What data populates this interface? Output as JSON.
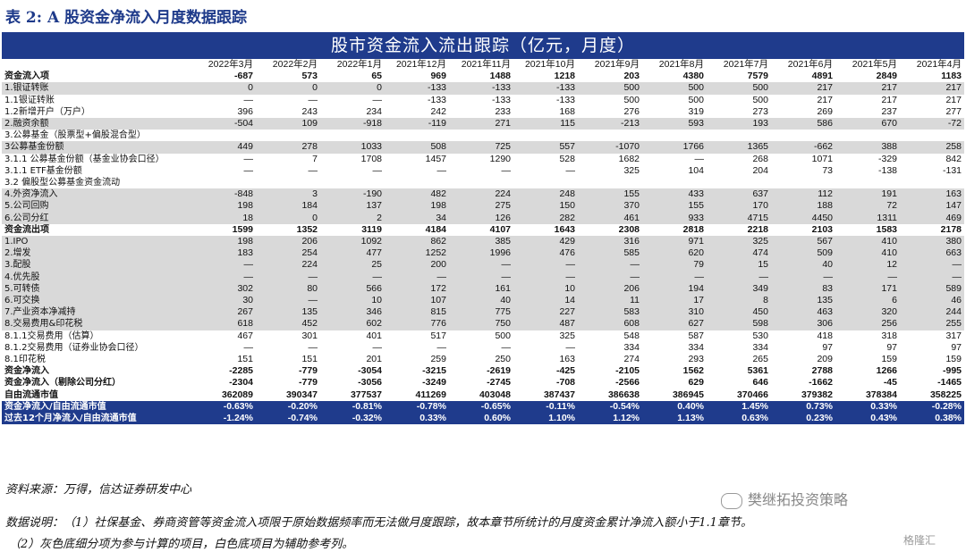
{
  "title": "表 2:  A 股资金净流入月度数据跟踪",
  "table_title": "股市资金流入流出跟踪（亿元，月度）",
  "columns": [
    "",
    "2022年3月",
    "2022年2月",
    "2022年1月",
    "2021年12月",
    "2021年11月",
    "2021年10月",
    "2021年9月",
    "2021年8月",
    "2021年7月",
    "2021年6月",
    "2021年5月",
    "2021年4月"
  ],
  "rows": [
    {
      "style": "b",
      "cells": [
        "资金流入项",
        "-687",
        "573",
        "65",
        "969",
        "1488",
        "1218",
        "203",
        "4380",
        "7579",
        "4891",
        "2849",
        "1183"
      ]
    },
    {
      "style": "g",
      "cells": [
        "1.银证转账",
        "0",
        "0",
        "0",
        "-133",
        "-133",
        "-133",
        "500",
        "500",
        "500",
        "217",
        "217",
        "217"
      ]
    },
    {
      "style": "w",
      "cells": [
        "1.1银证转账",
        "—",
        "—",
        "—",
        "-133",
        "-133",
        "-133",
        "500",
        "500",
        "500",
        "217",
        "217",
        "217"
      ]
    },
    {
      "style": "w",
      "cells": [
        "1.2新增开户（万户）",
        "396",
        "243",
        "234",
        "242",
        "233",
        "168",
        "276",
        "319",
        "273",
        "269",
        "237",
        "277"
      ]
    },
    {
      "style": "g",
      "cells": [
        "2.融资余额",
        "-504",
        "109",
        "-918",
        "-119",
        "271",
        "115",
        "-213",
        "593",
        "193",
        "586",
        "670",
        "-72"
      ]
    },
    {
      "style": "w",
      "cells": [
        "3.公募基金（股票型+偏股混合型）",
        "",
        "",
        "",
        "",
        "",
        "",
        "",
        "",
        "",
        "",
        "",
        ""
      ]
    },
    {
      "style": "g",
      "cells": [
        "3公募基金份额",
        "449",
        "278",
        "1033",
        "508",
        "725",
        "557",
        "-1070",
        "1766",
        "1365",
        "-662",
        "388",
        "258"
      ]
    },
    {
      "style": "w",
      "cells": [
        "3.1.1 公募基金份额（基金业协会口径）",
        "—",
        "7",
        "1708",
        "1457",
        "1290",
        "528",
        "1682",
        "—",
        "268",
        "1071",
        "-329",
        "842"
      ]
    },
    {
      "style": "w",
      "cells": [
        "3.1.1 ETF基金份额",
        "—",
        "—",
        "—",
        "—",
        "—",
        "—",
        "325",
        "104",
        "204",
        "73",
        "-138",
        "-131"
      ]
    },
    {
      "style": "w",
      "cells": [
        "3.2 偏股型公募基金资金流动",
        "",
        "",
        "",
        "",
        "",
        "",
        "",
        "",
        "",
        "",
        "",
        ""
      ]
    },
    {
      "style": "g",
      "cells": [
        "4.外资净流入",
        "-848",
        "3",
        "-190",
        "482",
        "224",
        "248",
        "155",
        "433",
        "637",
        "112",
        "191",
        "163"
      ]
    },
    {
      "style": "g",
      "cells": [
        "5.公司回购",
        "198",
        "184",
        "137",
        "198",
        "275",
        "150",
        "370",
        "155",
        "170",
        "188",
        "72",
        "147"
      ]
    },
    {
      "style": "g",
      "cells": [
        "6.公司分红",
        "18",
        "0",
        "2",
        "34",
        "126",
        "282",
        "461",
        "933",
        "4715",
        "4450",
        "1311",
        "469"
      ]
    },
    {
      "style": "b",
      "cells": [
        "资金流出项",
        "1599",
        "1352",
        "3119",
        "4184",
        "4107",
        "1643",
        "2308",
        "2818",
        "2218",
        "2103",
        "1583",
        "2178"
      ]
    },
    {
      "style": "g",
      "cells": [
        "1.IPO",
        "198",
        "206",
        "1092",
        "862",
        "385",
        "429",
        "316",
        "971",
        "325",
        "567",
        "410",
        "380"
      ]
    },
    {
      "style": "g",
      "cells": [
        "2.增发",
        "183",
        "254",
        "477",
        "1252",
        "1996",
        "476",
        "585",
        "620",
        "474",
        "509",
        "410",
        "663"
      ]
    },
    {
      "style": "g",
      "cells": [
        "3.配股",
        "—",
        "224",
        "25",
        "200",
        "—",
        "—",
        "—",
        "79",
        "15",
        "40",
        "12",
        "—"
      ]
    },
    {
      "style": "g",
      "cells": [
        "4.优先股",
        "—",
        "—",
        "—",
        "—",
        "—",
        "—",
        "—",
        "—",
        "—",
        "—",
        "—",
        "—"
      ]
    },
    {
      "style": "g",
      "cells": [
        "5.可转债",
        "302",
        "80",
        "566",
        "172",
        "161",
        "10",
        "206",
        "194",
        "349",
        "83",
        "171",
        "589"
      ]
    },
    {
      "style": "g",
      "cells": [
        "6.可交换",
        "30",
        "—",
        "10",
        "107",
        "40",
        "14",
        "11",
        "17",
        "8",
        "135",
        "6",
        "46"
      ]
    },
    {
      "style": "g",
      "cells": [
        "7.产业资本净减持",
        "267",
        "135",
        "346",
        "815",
        "775",
        "227",
        "583",
        "310",
        "450",
        "463",
        "320",
        "244"
      ]
    },
    {
      "style": "g",
      "cells": [
        "8.交易费用&印花税",
        "618",
        "452",
        "602",
        "776",
        "750",
        "487",
        "608",
        "627",
        "598",
        "306",
        "256",
        "255"
      ]
    },
    {
      "style": "w",
      "cells": [
        "8.1.1交易费用（估算）",
        "467",
        "301",
        "401",
        "517",
        "500",
        "325",
        "548",
        "587",
        "530",
        "418",
        "318",
        "317"
      ]
    },
    {
      "style": "w",
      "cells": [
        "8.1.2交易费用（证券业协会口径）",
        "—",
        "—",
        "—",
        "—",
        "—",
        "—",
        "334",
        "334",
        "334",
        "97",
        "97",
        "97"
      ]
    },
    {
      "style": "w",
      "cells": [
        "8.1印花税",
        "151",
        "151",
        "201",
        "259",
        "250",
        "163",
        "274",
        "293",
        "265",
        "209",
        "159",
        "159"
      ]
    },
    {
      "style": "b",
      "cells": [
        "资金净流入",
        "-2285",
        "-779",
        "-3054",
        "-3215",
        "-2619",
        "-425",
        "-2105",
        "1562",
        "5361",
        "2788",
        "1266",
        "-995"
      ]
    },
    {
      "style": "b",
      "cells": [
        "资金净流入（剔除公司分红）",
        "-2304",
        "-779",
        "-3056",
        "-3249",
        "-2745",
        "-708",
        "-2566",
        "629",
        "646",
        "-1662",
        "-45",
        "-1465"
      ]
    },
    {
      "style": "b",
      "cells": [
        "自由流通市值",
        "362089",
        "390347",
        "377537",
        "411269",
        "403048",
        "387437",
        "386638",
        "386945",
        "370466",
        "379382",
        "378384",
        "358225"
      ]
    },
    {
      "style": "blue",
      "cells": [
        "资金净流入/自由流通市值",
        "-0.63%",
        "-0.20%",
        "-0.81%",
        "-0.78%",
        "-0.65%",
        "-0.11%",
        "-0.54%",
        "0.40%",
        "1.45%",
        "0.73%",
        "0.33%",
        "-0.28%"
      ]
    },
    {
      "style": "blue",
      "cells": [
        "过去12个月净流入/自由流通市值",
        "-1.24%",
        "-0.74%",
        "-0.32%",
        "0.33%",
        "0.60%",
        "1.10%",
        "1.12%",
        "1.13%",
        "0.63%",
        "0.23%",
        "0.43%",
        "0.38%"
      ]
    }
  ],
  "source": "资料来源：万得，信达证券研发中心",
  "note1": "数据说明：（1）社保基金、券商资管等资金流入项限于原始数据频率而无法做月度跟踪，故本章节所统计的月度资金累计净流入额小于1.1章节。",
  "note2": "（2）灰色底细分项为参与计算的项目，白色底项目为辅助参考列。",
  "watermark": "樊继拓投资策略",
  "watermark2": "格隆汇",
  "colors": {
    "header_blue": "#1f3b8c",
    "row_gray": "#d9d9d9"
  }
}
